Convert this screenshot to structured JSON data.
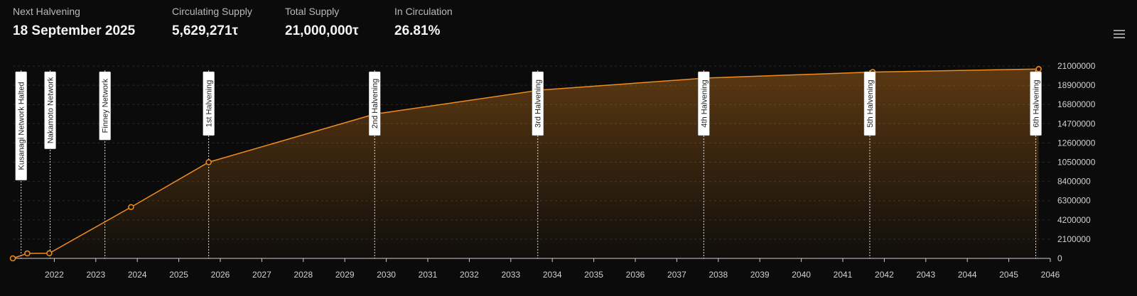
{
  "stats": {
    "next_halvening": {
      "label": "Next Halvening",
      "value": "18 September 2025"
    },
    "circulating_supply": {
      "label": "Circulating Supply",
      "value": "5,629,271τ"
    },
    "total_supply": {
      "label": "Total Supply",
      "value": "21,000,000τ"
    },
    "in_circulation": {
      "label": "In Circulation",
      "value": "26.81%"
    }
  },
  "menu": {
    "icon": "hamburger-menu-icon"
  },
  "colors": {
    "background": "#0b0b0b",
    "line": "#f08c1e",
    "marker_line": "#e0e0e0",
    "grid": "#2a2a2a",
    "marker_box": "#ffffff"
  },
  "chart_data": {
    "type": "area",
    "xlim": [
      2021.0,
      2046.0
    ],
    "ylim": [
      0,
      21000000
    ],
    "x_ticks": [
      "2022",
      "2023",
      "2024",
      "2025",
      "2026",
      "2027",
      "2028",
      "2029",
      "2030",
      "2031",
      "2032",
      "2033",
      "2034",
      "2035",
      "2036",
      "2037",
      "2038",
      "2039",
      "2040",
      "2041",
      "2042",
      "2043",
      "2044",
      "2045",
      "2046"
    ],
    "y_ticks": [
      "0",
      "2100000",
      "4200000",
      "6300000",
      "8400000",
      "10500000",
      "12600000",
      "14700000",
      "16800000",
      "18900000",
      "21000000"
    ],
    "series": [
      {
        "points": [
          {
            "x": 2021.0,
            "y": 0
          },
          {
            "x": 2021.35,
            "y": 540000
          },
          {
            "x": 2021.88,
            "y": 560000
          },
          {
            "x": 2023.85,
            "y": 5600000
          },
          {
            "x": 2025.72,
            "y": 10500000
          },
          {
            "x": 2029.72,
            "y": 15750000
          },
          {
            "x": 2033.72,
            "y": 18380000
          },
          {
            "x": 2037.72,
            "y": 19690000
          },
          {
            "x": 2041.72,
            "y": 20340000
          },
          {
            "x": 2045.72,
            "y": 20670000
          }
        ]
      }
    ],
    "annotations": [
      {
        "x": 2021.2,
        "label": "Kusanagi Network Halted"
      },
      {
        "x": 2021.9,
        "label": "Nakamoto Network"
      },
      {
        "x": 2023.22,
        "label": "Finney Network"
      },
      {
        "x": 2025.72,
        "label": "1st Halvening"
      },
      {
        "x": 2029.72,
        "label": "2nd Halvening"
      },
      {
        "x": 2033.65,
        "label": "3rd Halvening"
      },
      {
        "x": 2037.65,
        "label": "4th Halvening"
      },
      {
        "x": 2041.65,
        "label": "5th Halvening"
      },
      {
        "x": 2045.65,
        "label": "6th Halvening"
      }
    ],
    "grid": true
  }
}
